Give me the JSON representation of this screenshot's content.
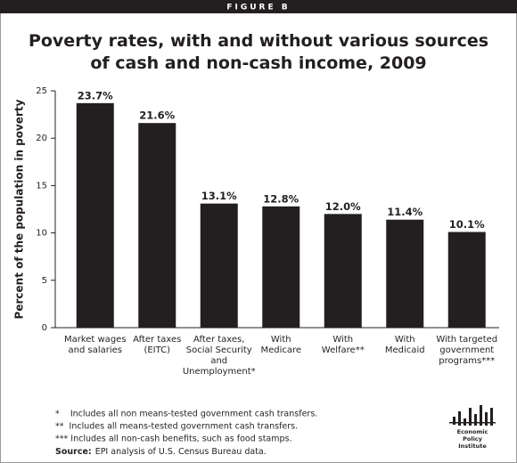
{
  "chart_data": {
    "type": "bar",
    "figure_label": "FIGURE B",
    "title": "Poverty rates, with and without various sources\nof cash and non-cash income, 2009",
    "y_label": "Percent of the population in poverty",
    "categories": [
      "Market wages\nand salaries",
      "After taxes\n(EITC)",
      "After taxes,\nSocial Security\nand\nUnemployment*",
      "With\nMedicare",
      "With\nWelfare**",
      "With\nMedicaid",
      "With targeted\ngovernment\nprograms***"
    ],
    "values": [
      23.7,
      21.6,
      13.1,
      12.8,
      12.0,
      11.4,
      10.1
    ],
    "value_labels": [
      "23.7%",
      "21.6%",
      "13.1%",
      "12.8%",
      "12.0%",
      "11.4%",
      "10.1%"
    ],
    "color": "#231f20",
    "ylim": [
      0,
      25
    ],
    "yticks": [
      0,
      5,
      10,
      15,
      20,
      25
    ],
    "grid": false,
    "footnotes": [
      "*    Includes all non means-tested government cash transfers.",
      "**  Includes all means-tested government cash transfers.",
      "*** Includes all non-cash benefits, such as food stamps."
    ],
    "source": {
      "label": "Source:",
      "text": "EPI analysis of U.S. Census Bureau data."
    },
    "logo": "Economic\nPolicy\nInstitute"
  }
}
